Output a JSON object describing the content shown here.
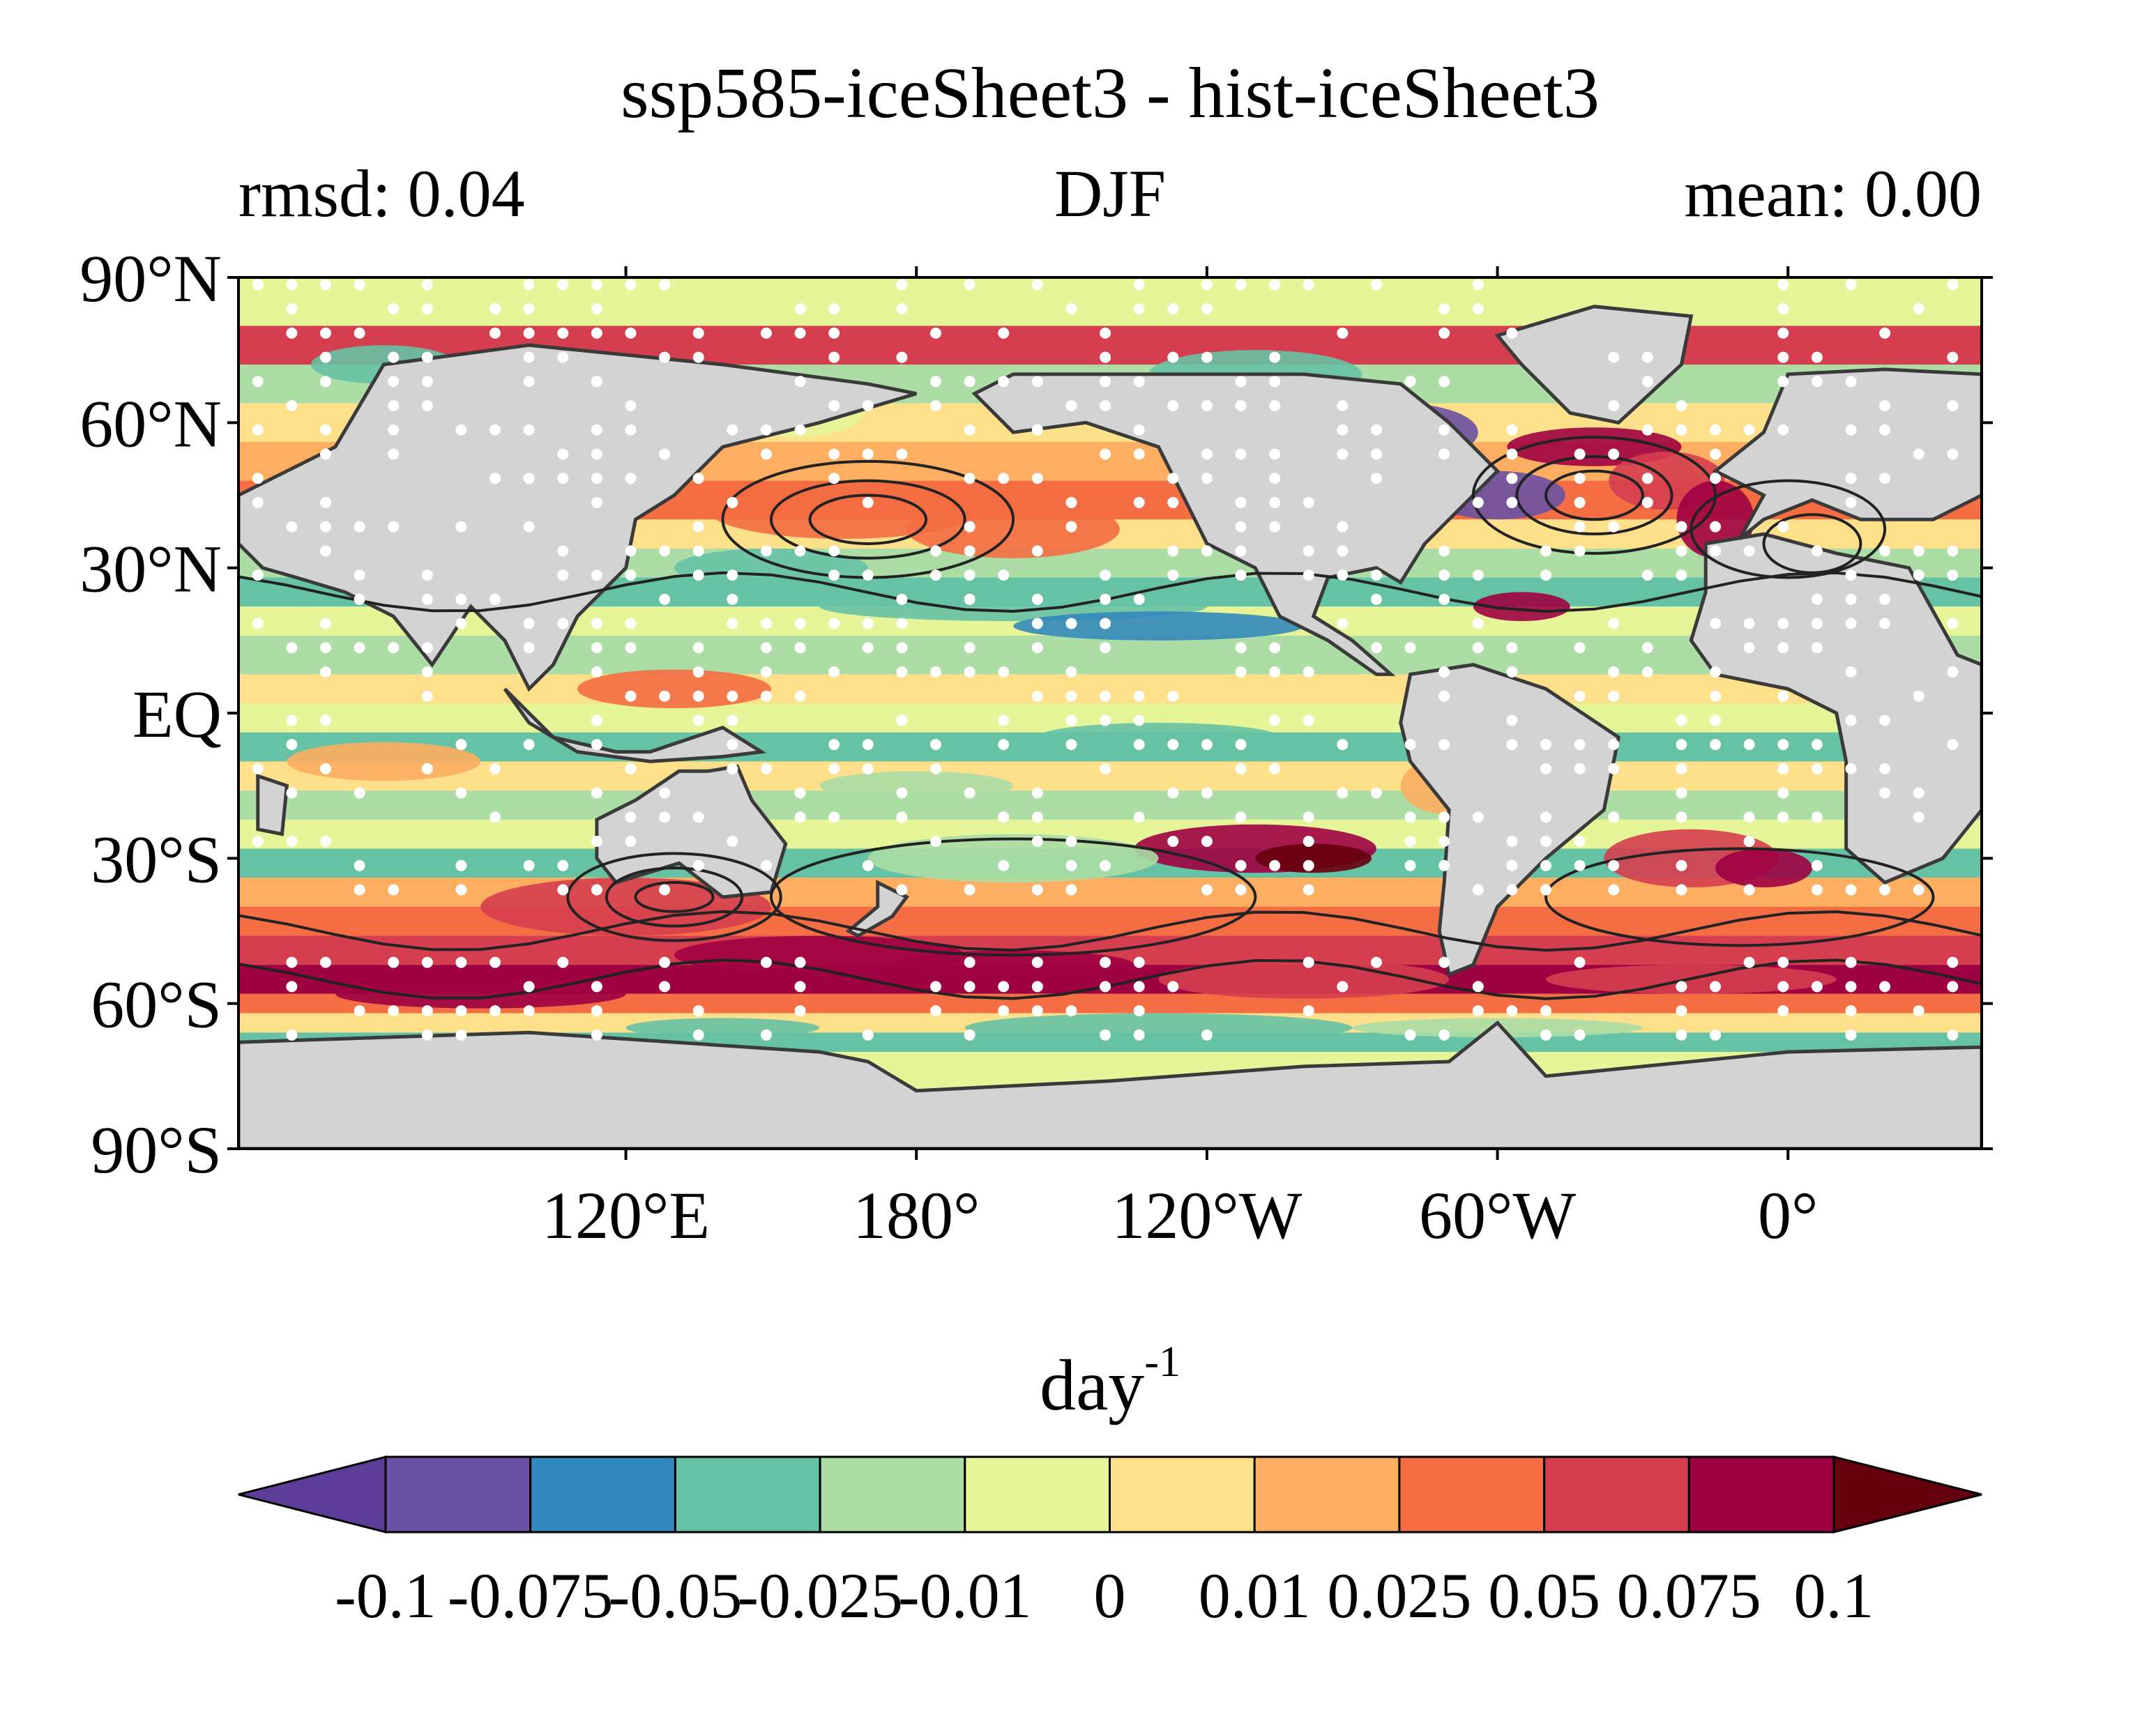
{
  "title": "ssp585-iceSheet3 - hist-iceSheet3",
  "left_stat": "rmsd: 0.04",
  "center_label": "DJF",
  "right_stat": "mean: 0.00",
  "lat_labels": [
    "90°N",
    "60°N",
    "30°N",
    "EQ",
    "30°S",
    "60°S",
    "90°S"
  ],
  "lon_labels": [
    "120°E",
    "180°",
    "120°W",
    "60°W",
    "0°"
  ],
  "colorbar": {
    "unit_base": "day",
    "unit_exp": "-1",
    "tick_labels": [
      "-0.1",
      "-0.075",
      "-0.05",
      "-0.025",
      "-0.01",
      "0",
      "0.01",
      "0.025",
      "0.05",
      "0.075",
      "0.1"
    ],
    "colors": [
      "#5e3c99",
      "#6a51a3",
      "#3288bd",
      "#66c2a5",
      "#abdda4",
      "#e6f598",
      "#fee08b",
      "#fdae61",
      "#f46d43",
      "#d53e4f",
      "#9e0142",
      "#67000d"
    ],
    "land_color": "#d3d3d3"
  },
  "chart_data": {
    "type": "heatmap",
    "title": "ssp585-iceSheet3 - hist-iceSheet3",
    "season": "DJF",
    "rmsd": 0.04,
    "mean": 0.0,
    "unit": "day^-1",
    "lon_range": [
      40,
      400
    ],
    "lat_range": [
      -90,
      90
    ],
    "lat_ticks": [
      90,
      60,
      30,
      0,
      -30,
      -60,
      -90
    ],
    "lon_ticks": [
      120,
      180,
      240,
      300,
      360
    ],
    "levels": [
      -0.1,
      -0.075,
      -0.05,
      -0.025,
      -0.01,
      0,
      0.01,
      0.025,
      0.05,
      0.075,
      0.1
    ],
    "extend": "both",
    "stippling": "white dots",
    "contours": "black lines"
  }
}
